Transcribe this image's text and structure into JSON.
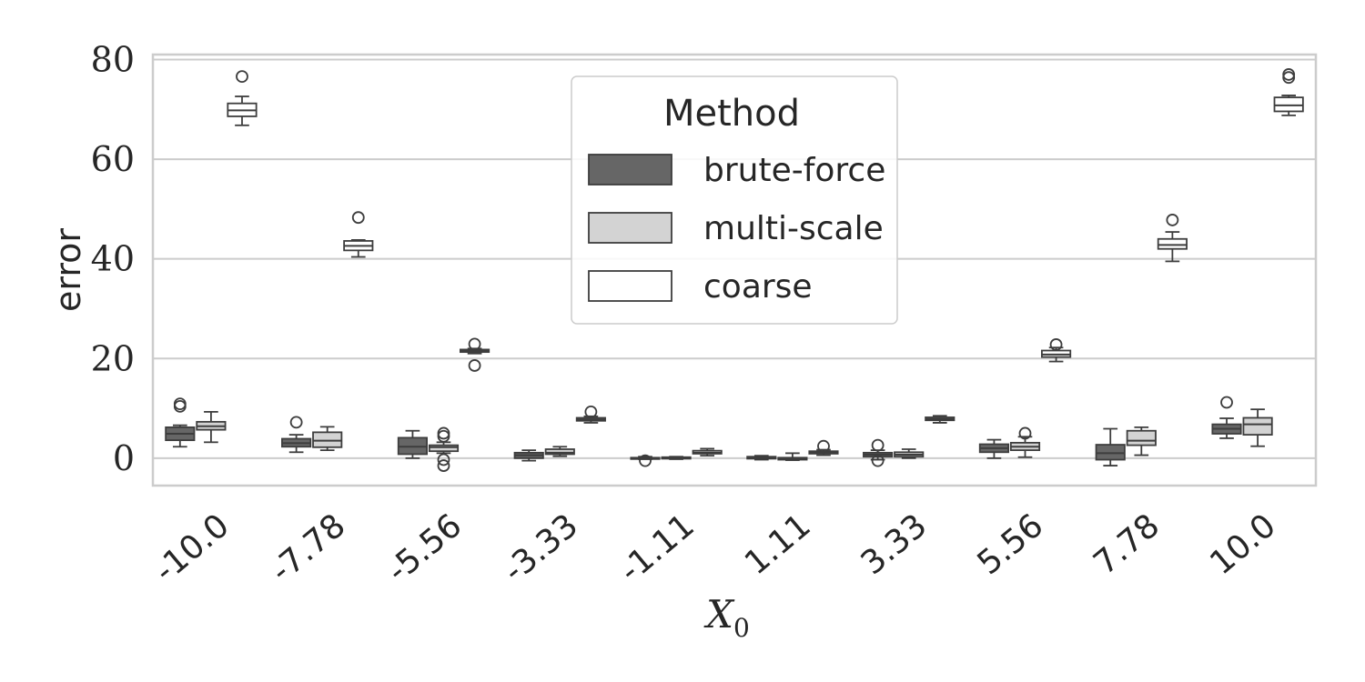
{
  "chart_data": {
    "type": "box",
    "xlabel": "X",
    "xlabel_subscript": "0",
    "ylabel": "error",
    "ylim": [
      -5.5,
      81
    ],
    "yticks": [
      "0",
      "20",
      "40",
      "60",
      "80"
    ],
    "grid": true,
    "legend": {
      "title": "Method",
      "placement": "top-center"
    },
    "categories": [
      "-10.0",
      "-7.78",
      "-5.56",
      "-3.33",
      "-1.11",
      "1.11",
      "3.33",
      "5.56",
      "7.78",
      "10.0"
    ],
    "series": [
      {
        "name": "brute-force",
        "color": "#666666",
        "boxes": [
          {
            "whislo": 2.3,
            "q1": 3.6,
            "med": 4.9,
            "q3": 6.2,
            "whishi": 6.6,
            "fliers": [
              10.4,
              10.9
            ]
          },
          {
            "whislo": 1.2,
            "q1": 2.3,
            "med": 3.0,
            "q3": 3.9,
            "whishi": 4.7,
            "fliers": [
              7.2
            ]
          },
          {
            "whislo": 0.0,
            "q1": 0.8,
            "med": 2.3,
            "q3": 4.1,
            "whishi": 5.5,
            "fliers": []
          },
          {
            "whislo": -0.5,
            "q1": 0.0,
            "med": 0.6,
            "q3": 1.1,
            "whishi": 1.6,
            "fliers": []
          },
          {
            "whislo": -0.2,
            "q1": -0.1,
            "med": 0.0,
            "q3": 0.1,
            "whishi": 0.3,
            "fliers": [
              -0.5
            ]
          },
          {
            "whislo": -0.3,
            "q1": -0.1,
            "med": 0.1,
            "q3": 0.3,
            "whishi": 0.5,
            "fliers": []
          },
          {
            "whislo": -0.3,
            "q1": 0.3,
            "med": 0.7,
            "q3": 1.1,
            "whishi": 1.6,
            "fliers": [
              2.6,
              -0.5
            ]
          },
          {
            "whislo": 0.0,
            "q1": 1.2,
            "med": 2.0,
            "q3": 2.8,
            "whishi": 3.7,
            "fliers": []
          },
          {
            "whislo": -1.5,
            "q1": -0.3,
            "med": 1.0,
            "q3": 2.7,
            "whishi": 5.9,
            "fliers": []
          },
          {
            "whislo": 4.0,
            "q1": 4.9,
            "med": 5.9,
            "q3": 6.8,
            "whishi": 8.0,
            "fliers": [
              11.2
            ]
          }
        ]
      },
      {
        "name": "multi-scale",
        "color": "#d3d3d3",
        "boxes": [
          {
            "whislo": 3.2,
            "q1": 5.7,
            "med": 6.4,
            "q3": 7.3,
            "whishi": 9.3,
            "fliers": []
          },
          {
            "whislo": 1.6,
            "q1": 2.2,
            "med": 3.5,
            "q3": 5.2,
            "whishi": 6.3,
            "fliers": []
          },
          {
            "whislo": 1.0,
            "q1": 1.4,
            "med": 2.2,
            "q3": 2.6,
            "whishi": 3.2,
            "fliers": [
              -0.3,
              -1.5,
              4.4,
              5.0
            ]
          },
          {
            "whislo": 0.4,
            "q1": 0.8,
            "med": 1.1,
            "q3": 1.8,
            "whishi": 2.3,
            "fliers": []
          },
          {
            "whislo": -0.2,
            "q1": -0.1,
            "med": 0.1,
            "q3": 0.2,
            "whishi": 0.3,
            "fliers": []
          },
          {
            "whislo": -0.4,
            "q1": -0.3,
            "med": -0.1,
            "q3": 0.1,
            "whishi": 1.0,
            "fliers": []
          },
          {
            "whislo": 0.0,
            "q1": 0.3,
            "med": 0.7,
            "q3": 1.2,
            "whishi": 1.8,
            "fliers": []
          },
          {
            "whislo": 0.2,
            "q1": 1.6,
            "med": 2.3,
            "q3": 3.1,
            "whishi": 4.3,
            "fliers": [
              5.0
            ]
          },
          {
            "whislo": 0.6,
            "q1": 2.6,
            "med": 3.5,
            "q3": 5.5,
            "whishi": 6.2,
            "fliers": []
          },
          {
            "whislo": 2.4,
            "q1": 4.7,
            "med": 6.8,
            "q3": 8.1,
            "whishi": 9.8,
            "fliers": []
          }
        ]
      },
      {
        "name": "coarse",
        "color": "#ffffff",
        "boxes": [
          {
            "whislo": 66.8,
            "q1": 68.6,
            "med": 69.8,
            "q3": 71.2,
            "whishi": 72.6,
            "fliers": [
              76.6
            ]
          },
          {
            "whislo": 40.4,
            "q1": 41.7,
            "med": 42.6,
            "q3": 43.6,
            "whishi": 43.8,
            "fliers": [
              48.3
            ]
          },
          {
            "whislo": 21.0,
            "q1": 21.3,
            "med": 21.6,
            "q3": 21.8,
            "whishi": 22.0,
            "fliers": [
              18.6,
              22.9
            ]
          },
          {
            "whislo": 7.1,
            "q1": 7.5,
            "med": 7.8,
            "q3": 8.1,
            "whishi": 8.4,
            "fliers": [
              9.3
            ]
          },
          {
            "whislo": 0.5,
            "q1": 0.9,
            "med": 1.1,
            "q3": 1.5,
            "whishi": 1.9,
            "fliers": []
          },
          {
            "whislo": 0.6,
            "q1": 0.9,
            "med": 1.1,
            "q3": 1.4,
            "whishi": 1.7,
            "fliers": [
              2.4
            ]
          },
          {
            "whislo": 7.1,
            "q1": 7.6,
            "med": 7.9,
            "q3": 8.2,
            "whishi": 8.5,
            "fliers": []
          },
          {
            "whislo": 19.4,
            "q1": 20.3,
            "med": 20.8,
            "q3": 21.6,
            "whishi": 22.2,
            "fliers": [
              22.8
            ]
          },
          {
            "whislo": 39.5,
            "q1": 42.0,
            "med": 42.8,
            "q3": 44.0,
            "whishi": 45.4,
            "fliers": [
              47.8
            ]
          },
          {
            "whislo": 68.8,
            "q1": 69.6,
            "med": 70.8,
            "q3": 72.4,
            "whishi": 72.8,
            "fliers": [
              76.4,
              77.0
            ]
          }
        ]
      }
    ]
  }
}
